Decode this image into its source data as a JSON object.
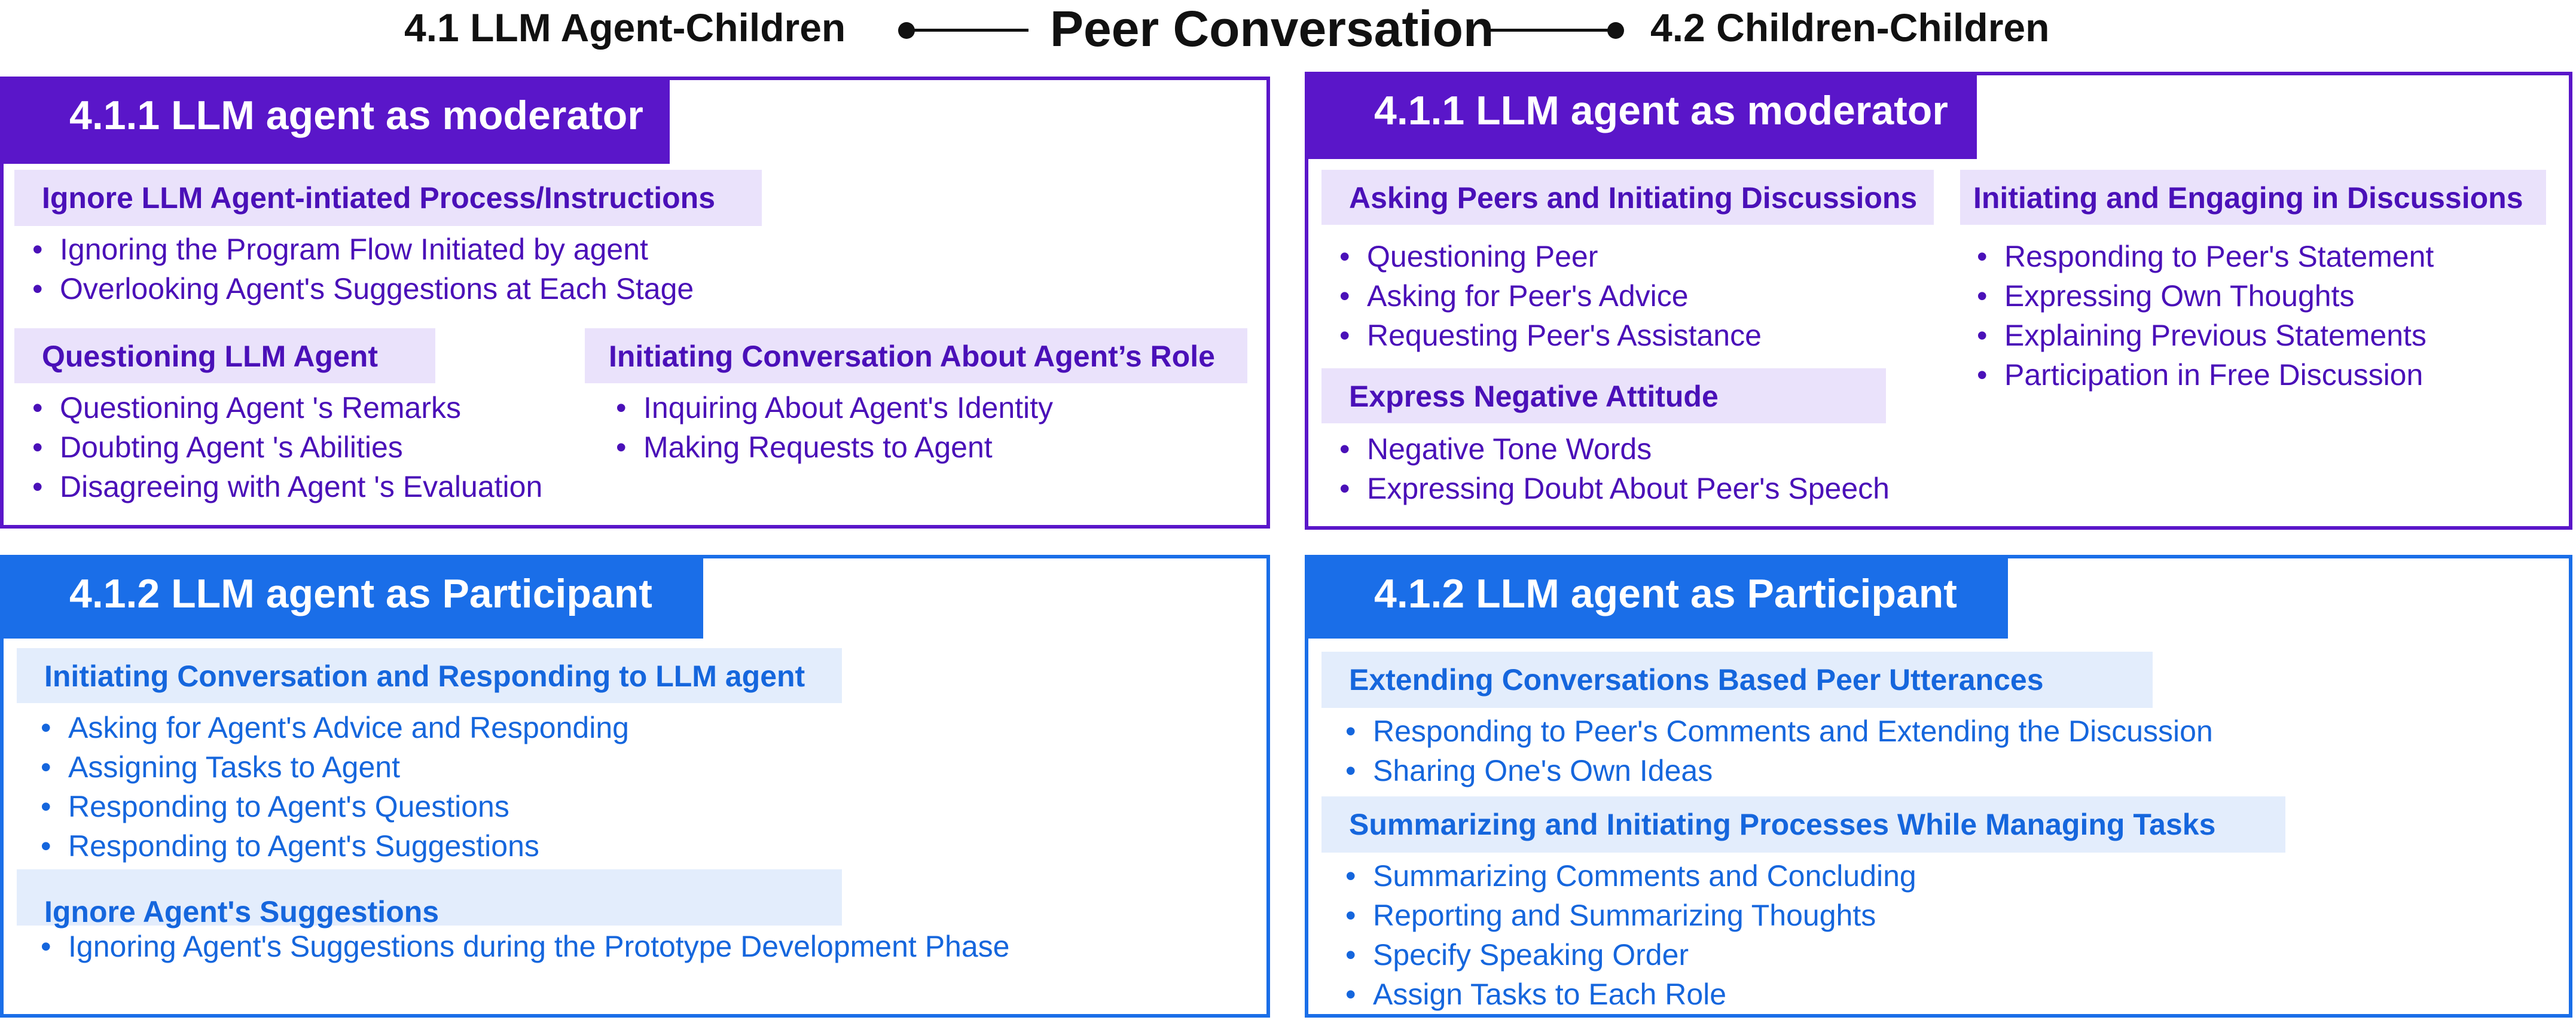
{
  "header": {
    "left": "4.1 LLM Agent-Children",
    "center": "Peer Conversation",
    "right": "4.2 Children-Children"
  },
  "colors": {
    "purple": "#5a16c9",
    "purple_tint": "#eae2fb",
    "blue": "#1a6ee8",
    "blue_tint": "#e3edfc"
  },
  "agent_children": {
    "moderator": {
      "title": "4.1.1 LLM agent as moderator",
      "ignore": {
        "label": "Ignore LLM Agent-intiated Process/Instructions",
        "items": [
          "Ignoring the Program Flow Initiated by agent",
          "Overlooking Agent's Suggestions at Each Stage"
        ]
      },
      "questioning": {
        "label": "Questioning LLM Agent",
        "items": [
          "Questioning  Agent 's Remarks",
          "Doubting  Agent 's Abilities",
          "Disagreeing with Agent 's Evaluation"
        ]
      },
      "role": {
        "label": "Initiating Conversation About Agent’s Role",
        "items": [
          "Inquiring About Agent's Identity",
          "Making Requests to Agent"
        ]
      }
    },
    "participant": {
      "title": "4.1.2 LLM agent as Participant",
      "initiating": {
        "label": "Initiating Conversation and Responding to LLM agent",
        "items": [
          "Asking for Agent's Advice and Responding",
          "Assigning Tasks to Agent",
          "Responding to Agent's Questions",
          "Responding to Agent's Suggestions"
        ]
      },
      "ignore": {
        "label": "Ignore Agent's Suggestions",
        "items": [
          "Ignoring Agent's Suggestions during the Prototype Development Phase"
        ]
      }
    }
  },
  "children_children": {
    "moderator": {
      "title": "4.1.1 LLM agent as moderator",
      "asking": {
        "label": "Asking Peers and Initiating Discussions",
        "items": [
          "Questioning Peer",
          "Asking for Peer's Advice",
          "Requesting Peer's Assistance"
        ]
      },
      "negative": {
        "label": "Express Negative Attitude",
        "items": [
          "Negative Tone Words",
          "Expressing Doubt About Peer's Speech"
        ]
      },
      "engaging": {
        "label": "Initiating and Engaging in Discussions",
        "items": [
          "Responding to Peer's Statement",
          "Expressing Own Thoughts",
          "Explaining Previous Statements",
          "Participation in Free Discussion"
        ]
      }
    },
    "participant": {
      "title": "4.1.2 LLM agent as Participant",
      "extending": {
        "label": "Extending Conversations Based Peer Utterances",
        "items": [
          "Responding to Peer's Comments and Extending the Discussion",
          "Sharing One's Own Ideas"
        ]
      },
      "summarizing": {
        "label": "Summarizing and Initiating Processes  While Managing Tasks",
        "items": [
          "Summarizing Comments and Concluding",
          "Reporting and Summarizing Thoughts",
          "Specify Speaking Order",
          "Assign Tasks to Each Role"
        ]
      }
    }
  }
}
